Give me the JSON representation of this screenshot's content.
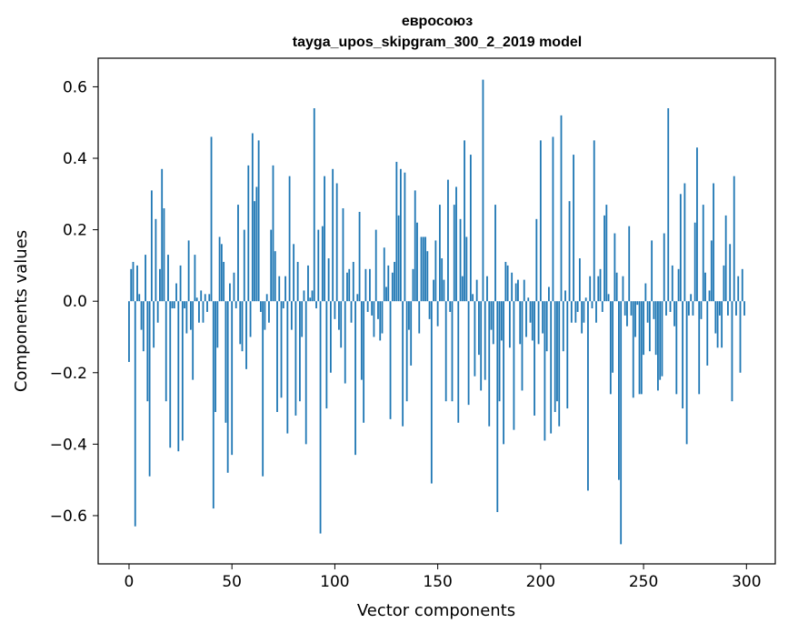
{
  "chart_data": {
    "type": "bar",
    "title": "евросоюз",
    "subtitle": "tayga_upos_skipgram_300_2_2019 model",
    "xlabel": "Vector components",
    "ylabel": "Components values",
    "xlim": [
      -15,
      314
    ],
    "ylim": [
      -0.735,
      0.68
    ],
    "xticks": [
      0,
      50,
      100,
      150,
      200,
      250,
      300
    ],
    "yticks": [
      -0.6,
      -0.4,
      -0.2,
      0.0,
      0.2,
      0.4,
      0.6
    ],
    "xtick_labels": [
      "0",
      "50",
      "100",
      "150",
      "200",
      "250",
      "300"
    ],
    "ytick_labels": [
      "−0.6",
      "−0.4",
      "−0.2",
      "0.0",
      "0.2",
      "0.4",
      "0.6"
    ],
    "bar_color": "#1f77b4",
    "grid": false,
    "values": [
      -0.17,
      0.09,
      0.11,
      -0.63,
      0.1,
      0.02,
      -0.08,
      -0.14,
      0.13,
      -0.28,
      -0.49,
      0.31,
      -0.13,
      0.23,
      -0.06,
      0.09,
      0.37,
      0.26,
      -0.28,
      0.13,
      -0.41,
      -0.02,
      -0.02,
      0.05,
      -0.42,
      0.1,
      -0.39,
      -0.02,
      -0.09,
      0.17,
      -0.08,
      -0.22,
      0.13,
      0.01,
      -0.06,
      0.03,
      -0.06,
      0.02,
      -0.03,
      0.02,
      0.46,
      -0.58,
      -0.31,
      -0.13,
      0.18,
      0.16,
      0.11,
      -0.34,
      -0.48,
      0.05,
      -0.43,
      0.08,
      -0.02,
      0.27,
      -0.12,
      -0.14,
      0.2,
      -0.19,
      0.38,
      -0.1,
      0.47,
      0.28,
      0.32,
      0.45,
      -0.03,
      -0.49,
      -0.08,
      0.02,
      -0.06,
      0.2,
      0.38,
      0.14,
      -0.31,
      0.07,
      -0.27,
      -0.02,
      0.07,
      -0.37,
      0.35,
      -0.08,
      0.16,
      -0.32,
      0.11,
      -0.28,
      -0.1,
      0.03,
      -0.4,
      0.1,
      0.01,
      0.03,
      0.54,
      -0.02,
      0.2,
      -0.65,
      0.21,
      0.35,
      -0.3,
      0.12,
      -0.2,
      0.37,
      -0.05,
      0.33,
      -0.08,
      -0.13,
      0.26,
      -0.23,
      0.08,
      0.09,
      -0.06,
      0.11,
      -0.43,
      0.02,
      0.25,
      -0.22,
      -0.34,
      0.09,
      -0.03,
      0.09,
      -0.04,
      -0.1,
      0.2,
      -0.05,
      -0.11,
      -0.09,
      0.15,
      0.04,
      0.1,
      -0.33,
      0.08,
      0.11,
      0.39,
      0.24,
      0.37,
      -0.35,
      0.36,
      -0.28,
      -0.08,
      -0.18,
      0.09,
      0.31,
      0.22,
      -0.09,
      0.18,
      0.18,
      0.18,
      0.14,
      -0.05,
      -0.51,
      0.06,
      0.17,
      -0.07,
      0.27,
      0.12,
      0.06,
      -0.28,
      0.34,
      -0.03,
      -0.28,
      0.27,
      0.32,
      -0.34,
      0.23,
      0.07,
      0.45,
      0.18,
      -0.29,
      0.41,
      0.02,
      -0.21,
      0.06,
      -0.15,
      -0.25,
      0.62,
      -0.22,
      0.07,
      -0.35,
      -0.08,
      -0.12,
      0.27,
      -0.59,
      -0.28,
      -0.11,
      -0.4,
      0.11,
      0.1,
      -0.13,
      0.08,
      -0.36,
      0.05,
      0.06,
      -0.12,
      -0.25,
      0.06,
      -0.1,
      0.01,
      -0.06,
      -0.11,
      -0.32,
      0.23,
      -0.12,
      0.45,
      -0.09,
      -0.39,
      -0.14,
      0.04,
      -0.37,
      0.46,
      -0.31,
      -0.28,
      -0.35,
      0.52,
      -0.14,
      0.03,
      -0.3,
      0.28,
      -0.06,
      0.41,
      -0.06,
      -0.03,
      0.12,
      -0.09,
      -0.06,
      0.01,
      -0.53,
      0.07,
      -0.02,
      0.45,
      -0.06,
      0.07,
      0.09,
      -0.03,
      0.24,
      0.27,
      0.02,
      -0.26,
      -0.2,
      0.19,
      0.08,
      -0.5,
      -0.68,
      0.07,
      -0.04,
      -0.07,
      0.21,
      -0.04,
      -0.27,
      -0.1,
      -0.01,
      -0.26,
      -0.26,
      -0.15,
      0.05,
      -0.06,
      -0.14,
      0.17,
      -0.05,
      -0.15,
      -0.25,
      -0.22,
      -0.21,
      0.19,
      -0.04,
      0.54,
      -0.03,
      0.1,
      -0.07,
      -0.26,
      0.09,
      0.3,
      -0.3,
      0.33,
      -0.4,
      -0.04,
      0.02,
      -0.04,
      0.22,
      0.43,
      -0.26,
      -0.05,
      0.27,
      0.08,
      -0.18,
      0.03,
      0.17,
      0.33,
      -0.09,
      -0.13,
      -0.04,
      -0.13,
      0.1,
      0.24,
      -0.04,
      0.16,
      -0.28,
      0.35,
      -0.04,
      0.07,
      -0.2,
      0.09,
      -0.04
    ]
  }
}
